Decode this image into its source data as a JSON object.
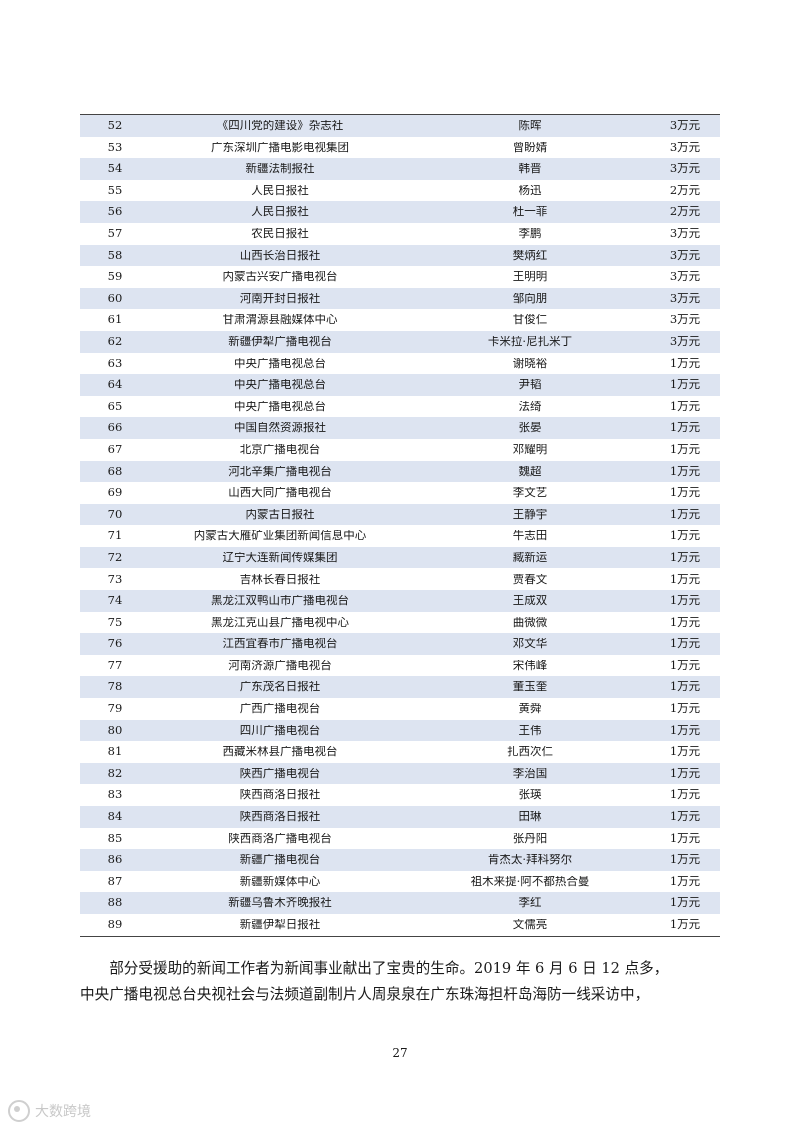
{
  "table": {
    "rows": [
      {
        "no": "52",
        "org": "《四川党的建设》杂志社",
        "name": "陈晖",
        "amount": "3万元"
      },
      {
        "no": "53",
        "org": "广东深圳广播电影电视集团",
        "name": "曾盼婧",
        "amount": "3万元"
      },
      {
        "no": "54",
        "org": "新疆法制报社",
        "name": "韩晋",
        "amount": "3万元"
      },
      {
        "no": "55",
        "org": "人民日报社",
        "name": "杨迅",
        "amount": "2万元"
      },
      {
        "no": "56",
        "org": "人民日报社",
        "name": "杜一菲",
        "amount": "2万元"
      },
      {
        "no": "57",
        "org": "农民日报社",
        "name": "李鹏",
        "amount": "3万元"
      },
      {
        "no": "58",
        "org": "山西长治日报社",
        "name": "樊炳红",
        "amount": "3万元"
      },
      {
        "no": "59",
        "org": "内蒙古兴安广播电视台",
        "name": "王明明",
        "amount": "3万元"
      },
      {
        "no": "60",
        "org": "河南开封日报社",
        "name": "邹向朋",
        "amount": "3万元"
      },
      {
        "no": "61",
        "org": "甘肃渭源县融媒体中心",
        "name": "甘俊仁",
        "amount": "3万元"
      },
      {
        "no": "62",
        "org": "新疆伊犁广播电视台",
        "name": "卡米拉·尼扎米丁",
        "amount": "3万元"
      },
      {
        "no": "63",
        "org": "中央广播电视总台",
        "name": "谢晓裕",
        "amount": "1万元"
      },
      {
        "no": "64",
        "org": "中央广播电视总台",
        "name": "尹韬",
        "amount": "1万元"
      },
      {
        "no": "65",
        "org": "中央广播电视总台",
        "name": "法绮",
        "amount": "1万元"
      },
      {
        "no": "66",
        "org": "中国自然资源报社",
        "name": "张晏",
        "amount": "1万元"
      },
      {
        "no": "67",
        "org": "北京广播电视台",
        "name": "邓耀明",
        "amount": "1万元"
      },
      {
        "no": "68",
        "org": "河北辛集广播电视台",
        "name": "魏超",
        "amount": "1万元"
      },
      {
        "no": "69",
        "org": "山西大同广播电视台",
        "name": "李文艺",
        "amount": "1万元"
      },
      {
        "no": "70",
        "org": "内蒙古日报社",
        "name": "王静宇",
        "amount": "1万元"
      },
      {
        "no": "71",
        "org": "内蒙古大雁矿业集团新闻信息中心",
        "name": "牛志田",
        "amount": "1万元"
      },
      {
        "no": "72",
        "org": "辽宁大连新闻传媒集团",
        "name": "臧新运",
        "amount": "1万元"
      },
      {
        "no": "73",
        "org": "吉林长春日报社",
        "name": "贾春文",
        "amount": "1万元"
      },
      {
        "no": "74",
        "org": "黑龙江双鸭山市广播电视台",
        "name": "王成双",
        "amount": "1万元"
      },
      {
        "no": "75",
        "org": "黑龙江克山县广播电视中心",
        "name": "曲微微",
        "amount": "1万元"
      },
      {
        "no": "76",
        "org": "江西宜春市广播电视台",
        "name": "邓文华",
        "amount": "1万元"
      },
      {
        "no": "77",
        "org": "河南济源广播电视台",
        "name": "宋伟峰",
        "amount": "1万元"
      },
      {
        "no": "78",
        "org": "广东茂名日报社",
        "name": "董玉奎",
        "amount": "1万元"
      },
      {
        "no": "79",
        "org": "广西广播电视台",
        "name": "黄舜",
        "amount": "1万元"
      },
      {
        "no": "80",
        "org": "四川广播电视台",
        "name": "王伟",
        "amount": "1万元"
      },
      {
        "no": "81",
        "org": "西藏米林县广播电视台",
        "name": "扎西次仁",
        "amount": "1万元"
      },
      {
        "no": "82",
        "org": "陕西广播电视台",
        "name": "李治国",
        "amount": "1万元"
      },
      {
        "no": "83",
        "org": "陕西商洛日报社",
        "name": "张瑛",
        "amount": "1万元"
      },
      {
        "no": "84",
        "org": "陕西商洛日报社",
        "name": "田琳",
        "amount": "1万元"
      },
      {
        "no": "85",
        "org": "陕西商洛广播电视台",
        "name": "张丹阳",
        "amount": "1万元"
      },
      {
        "no": "86",
        "org": "新疆广播电视台",
        "name": "肯杰太·拜科努尔",
        "amount": "1万元"
      },
      {
        "no": "87",
        "org": "新疆新媒体中心",
        "name": "祖木来提·阿不都热合曼",
        "amount": "1万元"
      },
      {
        "no": "88",
        "org": "新疆乌鲁木齐晚报社",
        "name": "李红",
        "amount": "1万元"
      },
      {
        "no": "89",
        "org": "新疆伊犁日报社",
        "name": "文儒亮",
        "amount": "1万元"
      }
    ]
  },
  "paragraph": {
    "line1": "　　部分受援助的新闻工作者为新闻事业献出了宝贵的生命。2019 年 6 月 6 日 12 点多，",
    "line2": "中央广播电视总台央视社会与法频道副制片人周泉泉在广东珠海担杆岛海防一线采访中，"
  },
  "page_number": "27",
  "watermark": {
    "icon": "camera-watermark-icon",
    "text": "大数跨境"
  },
  "colors": {
    "stripe": "#dde4f1",
    "rule": "#444444"
  }
}
